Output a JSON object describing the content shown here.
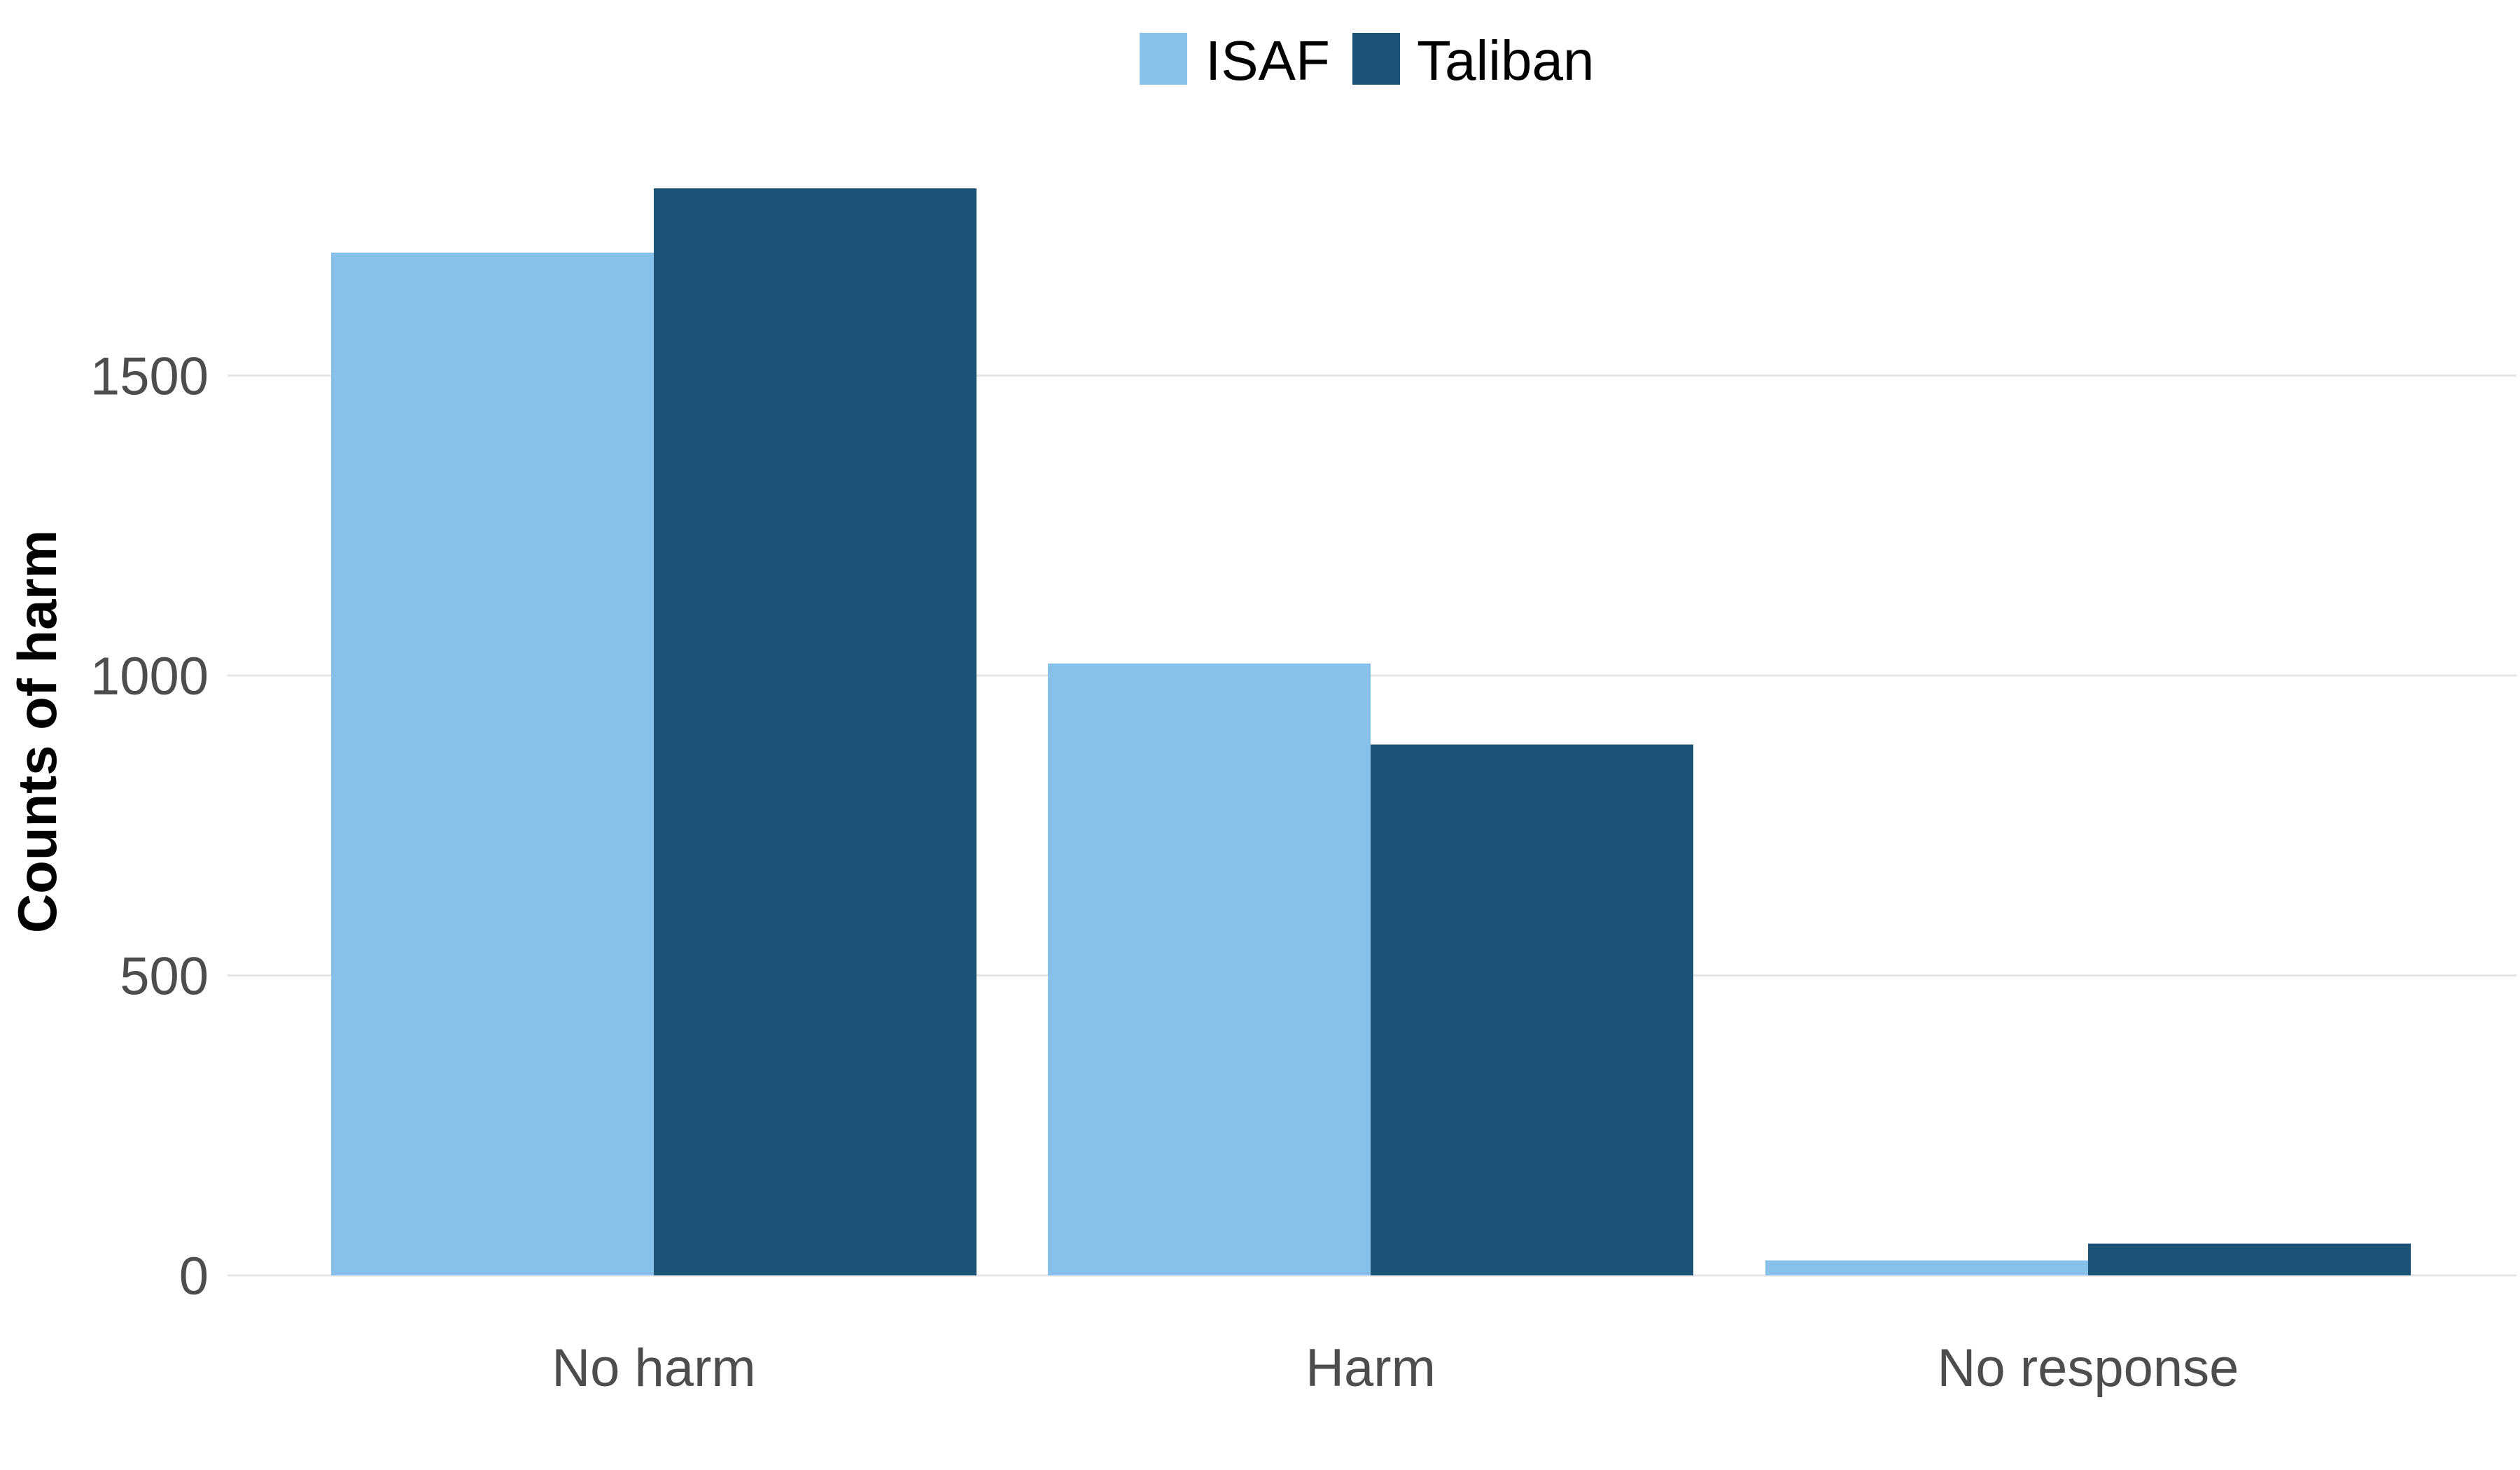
{
  "chart_data": {
    "type": "bar",
    "categories": [
      "No harm",
      "Harm",
      "No response"
    ],
    "series": [
      {
        "name": "ISAF",
        "color": "#87c0e8",
        "values": [
          1705,
          1020,
          25
        ]
      },
      {
        "name": "Taliban",
        "color": "#1c5276",
        "values": [
          1812,
          885,
          53
        ]
      }
    ],
    "xlabel": "",
    "ylabel": "Counts of harm",
    "ylim": [
      0,
      1900
    ],
    "yticks": [
      0,
      500,
      1000,
      1500
    ],
    "grid": true,
    "legend_position": "top"
  }
}
